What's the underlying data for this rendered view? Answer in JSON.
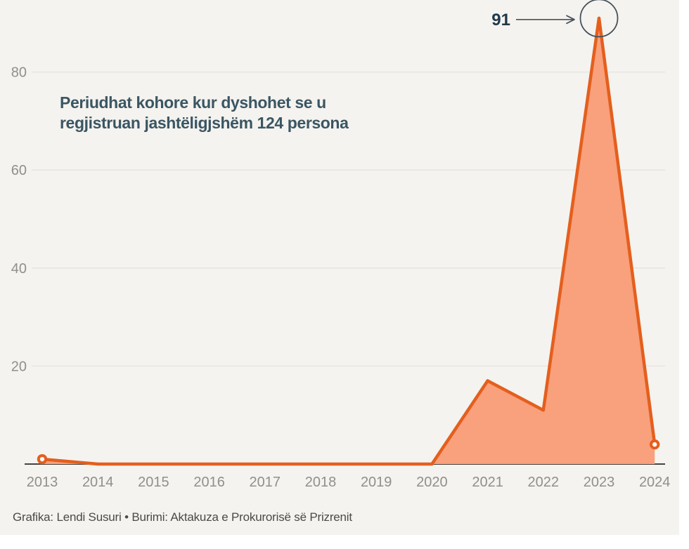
{
  "page": {
    "panel_background": "#f5f3ef",
    "outer_background": "#ffffff"
  },
  "chart_data": {
    "type": "area",
    "title_lines": [
      "Periudhat kohore kur dyshohet se u",
      "regjistruan jashtëligjshëm 124 persona"
    ],
    "x": [
      2013,
      2014,
      2015,
      2016,
      2017,
      2018,
      2019,
      2020,
      2021,
      2022,
      2023,
      2024
    ],
    "values": [
      1,
      0,
      0,
      0,
      0,
      0,
      0,
      0,
      17,
      11,
      91,
      4
    ],
    "total_label": "124 persona",
    "y_ticks": [
      20,
      40,
      60,
      80
    ],
    "ylim": [
      0,
      93
    ],
    "grid": "horizontal",
    "legend": "none",
    "endpoint_markers": [
      2013,
      2024
    ],
    "annotation": {
      "label": "91",
      "year": 2023,
      "value": 91
    },
    "colors": {
      "line": "#e45f1d",
      "fill": "#f9a07d",
      "grid": "#e6e3de",
      "axis": "#474440",
      "tick_label": "#918f8a",
      "title": "#3a5663",
      "annotation_text": "#20394a",
      "annotation_ring": "#46525c",
      "marker_fill": "#fbf9f6"
    }
  },
  "footer": {
    "credit": "Grafika: Lendi Susuri • Burimi: Aktakuza e Prokurorisë së Prizrenit"
  }
}
